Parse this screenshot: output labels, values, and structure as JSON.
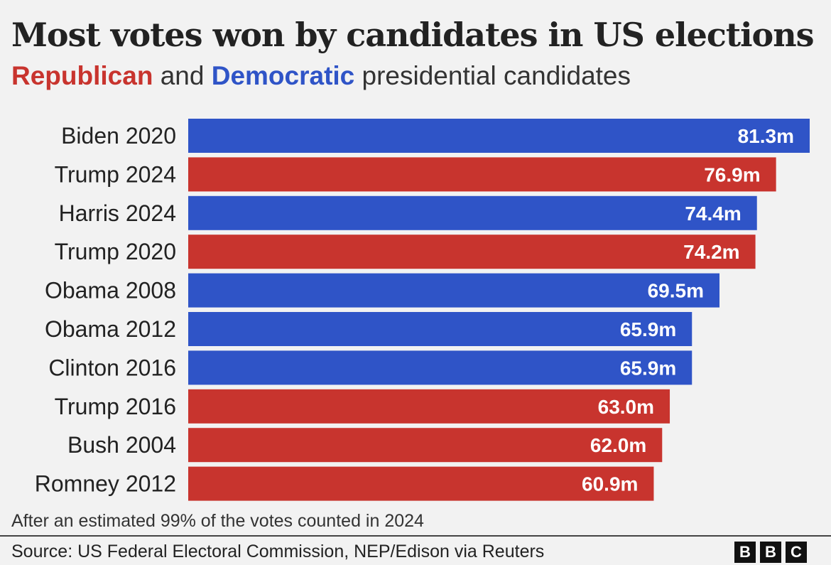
{
  "header": {
    "title": "Most votes won by candidates in US elections",
    "subtitle_rep": "Republican",
    "subtitle_and": "and",
    "subtitle_dem": "Democratic",
    "subtitle_rest": "presidential candidates"
  },
  "colors": {
    "Republican": "#c8342e",
    "Democratic": "#2f54c7",
    "background": "#f2f2f2"
  },
  "chart_data": {
    "type": "bar",
    "orientation": "horizontal",
    "title": "Most votes won by candidates in US elections",
    "subtitle": "Republican and Democratic presidential candidates",
    "categories": [
      "Biden 2020",
      "Trump 2024",
      "Harris 2024",
      "Trump 2020",
      "Obama 2008",
      "Obama 2012",
      "Clinton 2016",
      "Trump 2016",
      "Bush 2004",
      "Romney 2012"
    ],
    "values": [
      81.3,
      76.9,
      74.4,
      74.2,
      69.5,
      65.9,
      65.9,
      63.0,
      62.0,
      60.9
    ],
    "value_labels": [
      "81.3m",
      "76.9m",
      "74.4m",
      "74.2m",
      "69.5m",
      "65.9m",
      "65.9m",
      "63.0m",
      "62.0m",
      "60.9m"
    ],
    "party": [
      "Democratic",
      "Republican",
      "Democratic",
      "Republican",
      "Democratic",
      "Democratic",
      "Democratic",
      "Republican",
      "Republican",
      "Republican"
    ],
    "unit": "m",
    "xlim": [
      0,
      81.3
    ],
    "grid": false,
    "legend": "subtitle"
  },
  "footer": {
    "note": "After an estimated 99% of the votes counted in 2024",
    "source": "Source: US Federal Electoral Commission, NEP/Edison via Reuters",
    "logo_letters": [
      "B",
      "B",
      "C"
    ]
  }
}
